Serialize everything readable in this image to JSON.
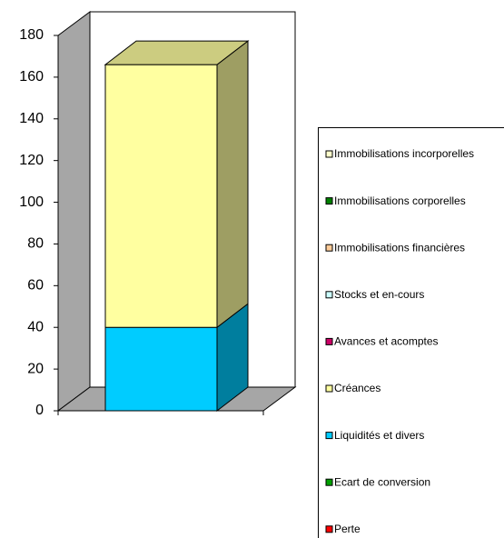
{
  "chart_data": {
    "type": "bar3d_stacked",
    "series": [
      {
        "name": "Immobilisations incorporelles",
        "color": "#ffffcc",
        "values": [
          0
        ]
      },
      {
        "name": "Immobilisations corporelles",
        "color": "#008000",
        "values": [
          0
        ]
      },
      {
        "name": "Immobilisations financières",
        "color": "#ffcc99",
        "values": [
          0
        ]
      },
      {
        "name": "Stocks et en-cours",
        "color": "#ccffff",
        "values": [
          0
        ]
      },
      {
        "name": "Avances et acomptes",
        "color": "#cc0066",
        "values": [
          0
        ]
      },
      {
        "name": "Créances",
        "color": "#ffffa0",
        "values": [
          126
        ]
      },
      {
        "name": "Liquidités et divers",
        "color": "#00ccff",
        "values": [
          40
        ]
      },
      {
        "name": "Ecart de conversion",
        "color": "#00a000",
        "values": [
          0
        ]
      },
      {
        "name": "Perte",
        "color": "#ff0000",
        "values": [
          0
        ]
      }
    ],
    "ylim": [
      0,
      180
    ],
    "yticks": [
      0,
      20,
      40,
      60,
      80,
      100,
      120,
      140,
      160,
      180
    ]
  }
}
